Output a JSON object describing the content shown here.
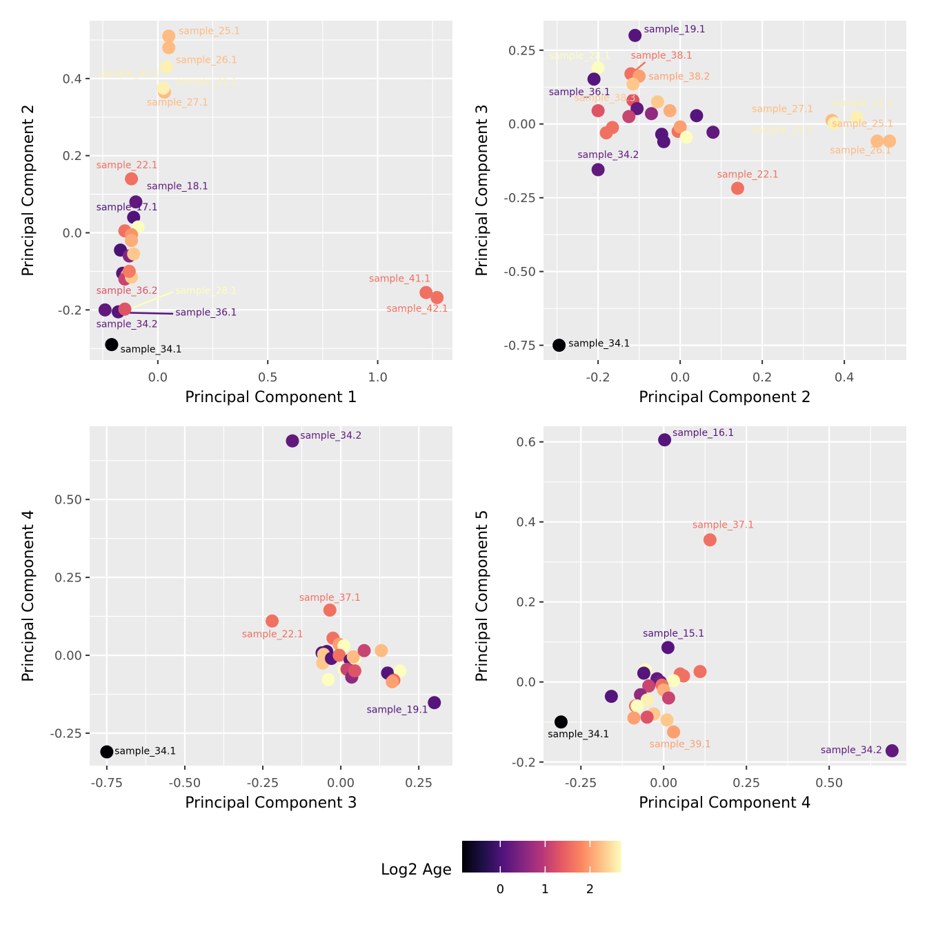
{
  "figure": {
    "colormap": "magma",
    "legend": {
      "title": "Log2 Age",
      "placement": "bottom",
      "range": [
        -0.85,
        2.7
      ],
      "ticks": [
        0,
        1,
        2
      ],
      "tick_labels": [
        "0",
        "1",
        "2"
      ],
      "colors": [
        "#000004",
        "#1c1044",
        "#4f127b",
        "#812581",
        "#b5367a",
        "#e55964",
        "#fb8761",
        "#fec287",
        "#fcfdbf"
      ]
    }
  },
  "chart_data": [
    {
      "type": "scatter",
      "id": "pc1-pc2",
      "xlabel": "Principal Component 1",
      "ylabel": "Principal Component 2",
      "xlim": [
        -0.31,
        1.34
      ],
      "ylim": [
        -0.33,
        0.55
      ],
      "xticks": [
        0.0,
        0.5,
        1.0
      ],
      "xtick_labels": [
        "0.0",
        "0.5",
        "1.0"
      ],
      "yticks": [
        -0.2,
        0.0,
        0.2,
        0.4
      ],
      "ytick_labels": [
        "-0.2",
        "0.0",
        "0.2",
        "0.4"
      ],
      "points": [
        {
          "x": 0.05,
          "y": 0.51,
          "age": 2.2
        },
        {
          "x": 0.05,
          "y": 0.48,
          "age": 2.2
        },
        {
          "x": 0.04,
          "y": 0.43,
          "age": 2.6
        },
        {
          "x": 0.03,
          "y": 0.365,
          "age": 2.2
        },
        {
          "x": 0.025,
          "y": 0.375,
          "age": 2.6
        },
        {
          "x": -0.12,
          "y": 0.14,
          "age": 1.6
        },
        {
          "x": -0.1,
          "y": 0.08,
          "age": 0.2
        },
        {
          "x": -0.11,
          "y": 0.04,
          "age": 0.05
        },
        {
          "x": -0.09,
          "y": 0.015,
          "age": 2.7
        },
        {
          "x": -0.15,
          "y": 0.005,
          "age": 1.6
        },
        {
          "x": -0.12,
          "y": -0.005,
          "age": 1.9
        },
        {
          "x": -0.12,
          "y": -0.02,
          "age": 2.1
        },
        {
          "x": -0.17,
          "y": -0.045,
          "age": 0.0
        },
        {
          "x": -0.13,
          "y": -0.06,
          "age": 0.5
        },
        {
          "x": -0.11,
          "y": -0.055,
          "age": 2.3
        },
        {
          "x": -0.16,
          "y": -0.105,
          "age": 0.1
        },
        {
          "x": -0.14,
          "y": -0.11,
          "age": 2.0
        },
        {
          "x": -0.15,
          "y": -0.12,
          "age": 1.1
        },
        {
          "x": -0.12,
          "y": -0.115,
          "age": 2.3
        },
        {
          "x": -0.13,
          "y": -0.1,
          "age": 1.7
        },
        {
          "x": -0.24,
          "y": -0.2,
          "age": 0.2
        },
        {
          "x": -0.18,
          "y": -0.205,
          "age": 0.1
        },
        {
          "x": -0.15,
          "y": -0.198,
          "age": 1.3
        },
        {
          "x": -0.21,
          "y": -0.29,
          "age": -0.85
        },
        {
          "x": 1.22,
          "y": -0.155,
          "age": 1.6
        },
        {
          "x": 1.27,
          "y": -0.168,
          "age": 1.6
        }
      ],
      "labels": [
        {
          "text": "sample_25.1",
          "x": 0.095,
          "y": 0.515,
          "age": 2.2,
          "anchor": "start"
        },
        {
          "text": "sample_26.1",
          "x": 0.082,
          "y": 0.44,
          "age": 2.2,
          "anchor": "start"
        },
        {
          "text": "sample_32.1",
          "x": -0.27,
          "y": 0.405,
          "age": 2.6,
          "anchor": "start"
        },
        {
          "text": "sample_31.1",
          "x": 0.082,
          "y": 0.385,
          "age": 2.6,
          "anchor": "start"
        },
        {
          "text": "sample_27.1",
          "x": -0.05,
          "y": 0.33,
          "age": 2.2,
          "anchor": "start"
        },
        {
          "text": "sample_22.1",
          "x": -0.28,
          "y": 0.167,
          "age": 1.6,
          "anchor": "start"
        },
        {
          "text": "sample_18.1",
          "x": -0.05,
          "y": 0.113,
          "age": 0.2,
          "anchor": "start"
        },
        {
          "text": "sample_17.1",
          "x": -0.28,
          "y": 0.058,
          "age": 0.05,
          "anchor": "start"
        },
        {
          "text": "sample_36.2",
          "x": -0.28,
          "y": -0.158,
          "age": 1.3,
          "anchor": "start"
        },
        {
          "text": "sample_28.1",
          "x": 0.08,
          "y": -0.158,
          "age": 2.7,
          "anchor": "start",
          "segment": [
            -0.14,
            -0.2,
            0.07,
            -0.153
          ]
        },
        {
          "text": "sample_36.1",
          "x": 0.08,
          "y": -0.215,
          "age": 0.1,
          "anchor": "start",
          "segment": [
            -0.16,
            -0.207,
            0.07,
            -0.21
          ]
        },
        {
          "text": "sample_34.2",
          "x": -0.28,
          "y": -0.245,
          "age": 0.2,
          "anchor": "start"
        },
        {
          "text": "sample_34.1",
          "x": -0.17,
          "y": -0.31,
          "age": -0.85,
          "anchor": "start",
          "black": true
        },
        {
          "text": "sample_41.1",
          "x": 1.24,
          "y": -0.127,
          "age": 1.6,
          "anchor": "end"
        },
        {
          "text": "sample_42.1",
          "x": 1.32,
          "y": -0.205,
          "age": 1.6,
          "anchor": "end"
        }
      ]
    },
    {
      "type": "scatter",
      "id": "pc2-pc3",
      "xlabel": "Principal Component 2",
      "ylabel": "Principal Component 3",
      "xlim": [
        -0.333,
        0.551
      ],
      "ylim": [
        -0.8,
        0.35
      ],
      "xticks": [
        -0.2,
        0.0,
        0.2,
        0.4
      ],
      "xtick_labels": [
        "-0.2",
        "0.0",
        "0.2",
        "0.4"
      ],
      "yticks": [
        -0.75,
        -0.5,
        -0.25,
        0.0,
        0.25
      ],
      "ytick_labels": [
        "-0.75",
        "-0.50",
        "-0.25",
        "0.00",
        "0.25"
      ],
      "points": [
        {
          "x": -0.11,
          "y": 0.3,
          "age": 0.1
        },
        {
          "x": -0.2,
          "y": 0.19,
          "age": 2.7
        },
        {
          "x": -0.21,
          "y": 0.152,
          "age": 0.1
        },
        {
          "x": -0.12,
          "y": 0.17,
          "age": 1.6
        },
        {
          "x": -0.1,
          "y": 0.162,
          "age": 2.0
        },
        {
          "x": -0.115,
          "y": 0.135,
          "age": 2.3
        },
        {
          "x": -0.115,
          "y": 0.08,
          "age": 1.3
        },
        {
          "x": -0.105,
          "y": 0.052,
          "age": 0.2
        },
        {
          "x": -0.2,
          "y": 0.045,
          "age": 1.3
        },
        {
          "x": -0.055,
          "y": 0.075,
          "age": 2.3
        },
        {
          "x": -0.025,
          "y": 0.045,
          "age": 2.1
        },
        {
          "x": -0.07,
          "y": 0.035,
          "age": 0.6
        },
        {
          "x": -0.125,
          "y": 0.025,
          "age": 1.1
        },
        {
          "x": 0.04,
          "y": 0.028,
          "age": 0.1
        },
        {
          "x": -0.165,
          "y": -0.012,
          "age": 1.6
        },
        {
          "x": -0.18,
          "y": -0.03,
          "age": 1.6
        },
        {
          "x": -0.045,
          "y": -0.035,
          "age": 0.1
        },
        {
          "x": -0.04,
          "y": -0.06,
          "age": 0.1
        },
        {
          "x": -0.005,
          "y": -0.025,
          "age": 1.6
        },
        {
          "x": 0.0,
          "y": -0.01,
          "age": 2.0
        },
        {
          "x": 0.015,
          "y": -0.045,
          "age": 2.7
        },
        {
          "x": 0.08,
          "y": -0.028,
          "age": 0.2
        },
        {
          "x": -0.2,
          "y": -0.155,
          "age": 0.2
        },
        {
          "x": 0.14,
          "y": -0.218,
          "age": 1.6
        },
        {
          "x": 0.37,
          "y": 0.012,
          "age": 2.2
        },
        {
          "x": 0.375,
          "y": 0.002,
          "age": 2.6
        },
        {
          "x": 0.43,
          "y": 0.022,
          "age": 2.6
        },
        {
          "x": 0.48,
          "y": -0.058,
          "age": 2.2
        },
        {
          "x": 0.51,
          "y": -0.058,
          "age": 2.2
        },
        {
          "x": -0.295,
          "y": -0.75,
          "age": -0.85
        }
      ],
      "labels": [
        {
          "text": "sample_19.1",
          "x": -0.088,
          "y": 0.31,
          "age": 0.1,
          "anchor": "start"
        },
        {
          "text": "sample_28.1",
          "x": -0.32,
          "y": 0.22,
          "age": 2.7,
          "anchor": "start"
        },
        {
          "text": "sample_38.1",
          "x": -0.12,
          "y": 0.222,
          "age": 1.6,
          "anchor": "start",
          "segment": [
            -0.11,
            0.18,
            -0.085,
            0.21
          ]
        },
        {
          "text": "sample_38.2",
          "x": -0.077,
          "y": 0.15,
          "age": 2.0,
          "anchor": "start"
        },
        {
          "text": "sample_36.1",
          "x": -0.32,
          "y": 0.098,
          "age": 0.1,
          "anchor": "start"
        },
        {
          "text": "sample_38.3",
          "x": -0.258,
          "y": 0.078,
          "age": 2.3,
          "anchor": "start"
        },
        {
          "text": "sample_27.1",
          "x": 0.175,
          "y": 0.04,
          "age": 2.2,
          "anchor": "start"
        },
        {
          "text": "sample_31.1",
          "x": 0.37,
          "y": 0.06,
          "age": 2.6,
          "anchor": "start"
        },
        {
          "text": "sample_32.1",
          "x": 0.175,
          "y": -0.03,
          "age": 2.6,
          "anchor": "start"
        },
        {
          "text": "sample_25.1",
          "x": 0.37,
          "y": -0.01,
          "age": 2.2,
          "anchor": "start"
        },
        {
          "text": "sample_26.1",
          "x": 0.365,
          "y": -0.1,
          "age": 2.2,
          "anchor": "start"
        },
        {
          "text": "sample_34.2",
          "x": -0.25,
          "y": -0.115,
          "age": 0.2,
          "anchor": "start"
        },
        {
          "text": "sample_22.1",
          "x": 0.09,
          "y": -0.182,
          "age": 1.6,
          "anchor": "start"
        },
        {
          "text": "sample_34.1",
          "x": -0.272,
          "y": -0.755,
          "age": -0.85,
          "anchor": "start",
          "black": true
        }
      ]
    },
    {
      "type": "scatter",
      "id": "pc3-pc4",
      "xlabel": "Principal Component 3",
      "ylabel": "Principal Component 4",
      "xlim": [
        -0.805,
        0.358
      ],
      "ylim": [
        -0.354,
        0.735
      ],
      "xticks": [
        -0.75,
        -0.5,
        -0.25,
        0.0,
        0.25
      ],
      "xtick_labels": [
        "-0.75",
        "-0.50",
        "-0.25",
        "0.00",
        "0.25"
      ],
      "yticks": [
        -0.25,
        0.0,
        0.25,
        0.5
      ],
      "ytick_labels": [
        "-0.25",
        "0.00",
        "0.25",
        "0.50"
      ],
      "points": [
        {
          "x": -0.155,
          "y": 0.688,
          "age": 0.2
        },
        {
          "x": -0.035,
          "y": 0.145,
          "age": 1.6
        },
        {
          "x": -0.22,
          "y": 0.11,
          "age": 1.6
        },
        {
          "x": -0.06,
          "y": 0.008,
          "age": 0.1
        },
        {
          "x": -0.045,
          "y": 0.012,
          "age": 0.05
        },
        {
          "x": -0.025,
          "y": 0.055,
          "age": 1.6
        },
        {
          "x": -0.005,
          "y": 0.035,
          "age": 2.0
        },
        {
          "x": 0.01,
          "y": 0.03,
          "age": 2.7
        },
        {
          "x": -0.055,
          "y": 0.003,
          "age": 2.3
        },
        {
          "x": -0.058,
          "y": -0.025,
          "age": 2.3
        },
        {
          "x": -0.03,
          "y": -0.01,
          "age": 0.1
        },
        {
          "x": -0.005,
          "y": 0.0,
          "age": 1.6
        },
        {
          "x": 0.03,
          "y": -0.015,
          "age": 0.1
        },
        {
          "x": 0.045,
          "y": -0.01,
          "age": 2.7
        },
        {
          "x": 0.04,
          "y": -0.005,
          "age": 2.2
        },
        {
          "x": 0.075,
          "y": 0.015,
          "age": 1.1
        },
        {
          "x": 0.13,
          "y": 0.015,
          "age": 2.2
        },
        {
          "x": 0.01,
          "y": -0.045,
          "age": 2.7
        },
        {
          "x": 0.02,
          "y": -0.045,
          "age": 1.1
        },
        {
          "x": 0.035,
          "y": -0.07,
          "age": 0.6
        },
        {
          "x": 0.045,
          "y": -0.05,
          "age": 1.3
        },
        {
          "x": -0.04,
          "y": -0.078,
          "age": 2.7
        },
        {
          "x": 0.15,
          "y": -0.057,
          "age": 0.1
        },
        {
          "x": 0.19,
          "y": -0.05,
          "age": 2.7
        },
        {
          "x": 0.17,
          "y": -0.08,
          "age": 1.6
        },
        {
          "x": 0.165,
          "y": -0.085,
          "age": 2.0
        },
        {
          "x": 0.3,
          "y": -0.152,
          "age": 0.1
        },
        {
          "x": -0.75,
          "y": -0.31,
          "age": -0.85
        }
      ],
      "labels": [
        {
          "text": "sample_34.2",
          "x": -0.13,
          "y": 0.695,
          "age": 0.2,
          "anchor": "start"
        },
        {
          "text": "sample_37.1",
          "x": -0.035,
          "y": 0.175,
          "age": 1.6,
          "anchor": "middle"
        },
        {
          "text": "sample_22.1",
          "x": -0.12,
          "y": 0.058,
          "age": 1.6,
          "anchor": "end"
        },
        {
          "text": "sample_19.1",
          "x": 0.28,
          "y": -0.185,
          "age": 0.1,
          "anchor": "end"
        },
        {
          "text": "sample_34.1",
          "x": -0.725,
          "y": -0.318,
          "age": -0.85,
          "anchor": "start",
          "black": true
        }
      ]
    },
    {
      "type": "scatter",
      "id": "pc4-pc5",
      "xlabel": "Principal Component 4",
      "ylabel": "Principal Component 5",
      "xlim": [
        -0.363,
        0.733
      ],
      "ylim": [
        -0.209,
        0.639
      ],
      "xticks": [
        -0.25,
        0.0,
        0.25,
        0.5
      ],
      "xtick_labels": [
        "-0.25",
        "0.00",
        "0.25",
        "0.50"
      ],
      "yticks": [
        -0.2,
        0.0,
        0.2,
        0.4,
        0.6
      ],
      "ytick_labels": [
        "-0.2",
        "0.0",
        "0.2",
        "0.4",
        "0.6"
      ],
      "points": [
        {
          "x": 0.003,
          "y": 0.605,
          "age": 0.1
        },
        {
          "x": 0.14,
          "y": 0.355,
          "age": 1.6
        },
        {
          "x": 0.013,
          "y": 0.086,
          "age": 0.1
        },
        {
          "x": -0.055,
          "y": 0.03,
          "age": 2.7
        },
        {
          "x": -0.06,
          "y": 0.022,
          "age": 0.1
        },
        {
          "x": -0.02,
          "y": 0.008,
          "age": 0.2
        },
        {
          "x": -0.01,
          "y": 0.0,
          "age": 0.3
        },
        {
          "x": 0.05,
          "y": 0.02,
          "age": 1.6
        },
        {
          "x": 0.06,
          "y": 0.015,
          "age": 1.6
        },
        {
          "x": 0.11,
          "y": 0.026,
          "age": 1.6
        },
        {
          "x": 0.03,
          "y": 0.003,
          "age": 2.7
        },
        {
          "x": -0.045,
          "y": -0.01,
          "age": 1.1
        },
        {
          "x": -0.005,
          "y": -0.008,
          "age": 1.6
        },
        {
          "x": 0.0,
          "y": -0.02,
          "age": 2.1
        },
        {
          "x": 0.015,
          "y": -0.04,
          "age": 1.1
        },
        {
          "x": -0.07,
          "y": -0.032,
          "age": 0.6
        },
        {
          "x": -0.05,
          "y": -0.045,
          "age": 2.6
        },
        {
          "x": -0.085,
          "y": -0.06,
          "age": 1.6
        },
        {
          "x": -0.08,
          "y": -0.06,
          "age": 2.7
        },
        {
          "x": -0.03,
          "y": -0.08,
          "age": 2.3
        },
        {
          "x": -0.05,
          "y": -0.088,
          "age": 1.3
        },
        {
          "x": -0.09,
          "y": -0.09,
          "age": 2.0
        },
        {
          "x": 0.01,
          "y": -0.095,
          "age": 2.3
        },
        {
          "x": 0.03,
          "y": -0.125,
          "age": 2.0
        },
        {
          "x": -0.158,
          "y": -0.036,
          "age": 0.1
        },
        {
          "x": -0.31,
          "y": -0.1,
          "age": -0.85
        },
        {
          "x": 0.69,
          "y": -0.172,
          "age": 0.2
        }
      ],
      "labels": [
        {
          "text": "sample_16.1",
          "x": 0.027,
          "y": 0.615,
          "age": 0.1,
          "anchor": "start"
        },
        {
          "text": "sample_37.1",
          "x": 0.18,
          "y": 0.385,
          "age": 1.6,
          "anchor": "middle"
        },
        {
          "text": "sample_15.1",
          "x": 0.03,
          "y": 0.113,
          "age": 0.1,
          "anchor": "middle"
        },
        {
          "text": "sample_34.1",
          "x": -0.35,
          "y": -0.138,
          "age": -0.85,
          "anchor": "start",
          "black": true
        },
        {
          "text": "sample_39.1",
          "x": 0.05,
          "y": -0.163,
          "age": 2.0,
          "anchor": "middle"
        },
        {
          "text": "sample_34.2",
          "x": 0.66,
          "y": -0.178,
          "age": 0.2,
          "anchor": "end"
        }
      ]
    }
  ]
}
